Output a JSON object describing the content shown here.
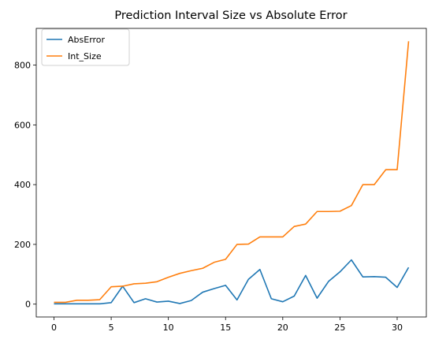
{
  "chart_data": {
    "type": "line",
    "title": "Prediction Interval Size vs Absolute Error",
    "xlabel": "",
    "ylabel": "",
    "xlim": [
      -1.55,
      32.55
    ],
    "ylim": [
      -43,
      923
    ],
    "xticks": [
      0,
      5,
      10,
      15,
      20,
      25,
      30
    ],
    "yticks": [
      0,
      200,
      400,
      600,
      800
    ],
    "grid": false,
    "legend_position": "top-left",
    "x": [
      0,
      1,
      2,
      3,
      4,
      5,
      6,
      7,
      8,
      9,
      10,
      11,
      12,
      13,
      14,
      15,
      16,
      17,
      18,
      19,
      20,
      21,
      22,
      23,
      24,
      25,
      26,
      27,
      28,
      29,
      30,
      31
    ],
    "series": [
      {
        "name": "AbsError",
        "color": "#1f77b4",
        "values": [
          1,
          1,
          1,
          1,
          1,
          5,
          60,
          5,
          18,
          7,
          10,
          2,
          12,
          40,
          52,
          63,
          14,
          83,
          116,
          18,
          8,
          27,
          96,
          20,
          76,
          108,
          148,
          91,
          92,
          90,
          56,
          123
        ]
      },
      {
        "name": "Int_Size",
        "color": "#ff7f0e",
        "values": [
          6,
          6,
          13,
          13,
          15,
          58,
          60,
          68,
          70,
          75,
          90,
          103,
          112,
          120,
          140,
          150,
          200,
          201,
          225,
          225,
          225,
          260,
          268,
          310,
          310,
          311,
          330,
          400,
          400,
          450,
          450,
          880
        ]
      }
    ]
  }
}
